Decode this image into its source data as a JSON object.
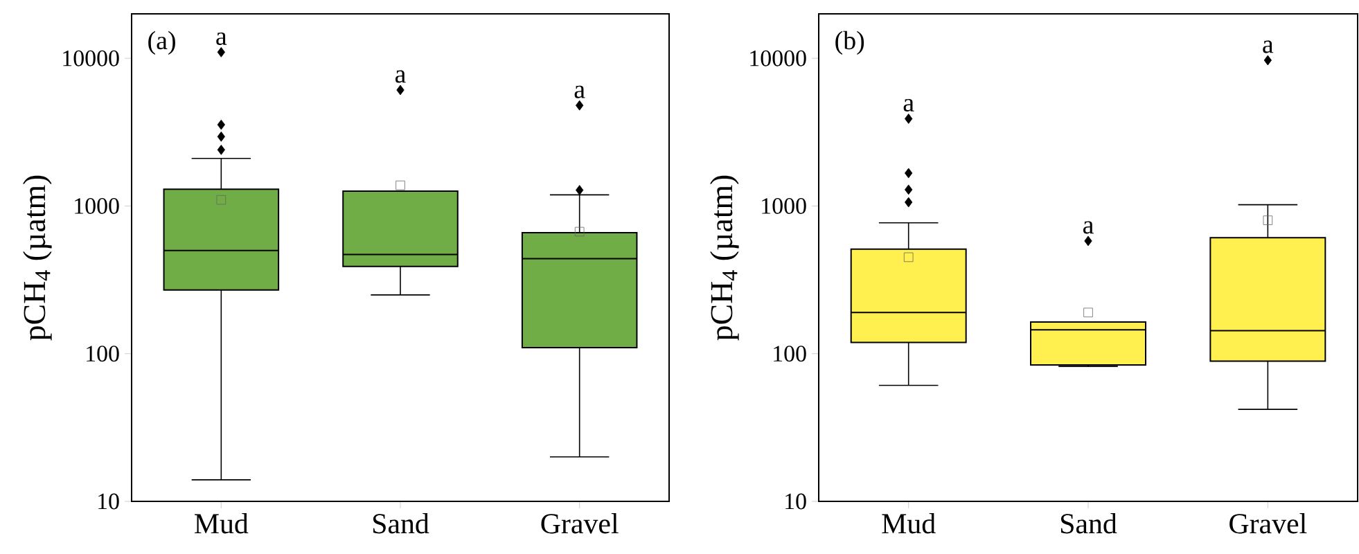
{
  "chart_data": [
    {
      "type": "box",
      "categories": [
        "Mud",
        "Sand",
        "Gravel"
      ],
      "ylabel": "pCH$_{4}$ (µatm)",
      "log": true,
      "ylim": [
        10,
        20000
      ],
      "yticks": [
        10,
        100,
        1000,
        10000
      ],
      "series": [
        {
          "color": "#70ad47",
          "boxes": [
            {
              "low": 14,
              "q1": 270,
              "median": 500,
              "q3": 1300,
              "high": 2100,
              "mean": 1100,
              "outliers": [
                2400,
                2950,
                3550,
                11000
              ]
            },
            {
              "low": 250,
              "q1": 390,
              "median": 470,
              "q3": 1260,
              "high": 1260,
              "mean": 1380,
              "outliers": [
                6100
              ]
            },
            {
              "low": 20,
              "q1": 110,
              "median": 440,
              "q3": 660,
              "high": 1190,
              "mean": 670,
              "outliers": [
                1280,
                4800
              ]
            }
          ]
        }
      ],
      "annotations": [
        "(a)",
        "a",
        "a",
        "a"
      ]
    },
    {
      "type": "box",
      "categories": [
        "Mud",
        "Sand",
        "Gravel"
      ],
      "ylabel": "pCH$_{4}$ (µatm)",
      "log": true,
      "ylim": [
        10,
        20000
      ],
      "yticks": [
        10,
        100,
        1000,
        10000
      ],
      "series": [
        {
          "color": "#fff04f",
          "boxes": [
            {
              "low": 61,
              "q1": 119,
              "median": 190,
              "q3": 510,
              "high": 770,
              "mean": 450,
              "outliers": [
                1060,
                1290,
                1670,
                3900
              ]
            },
            {
              "low": 82,
              "q1": 84,
              "median": 145,
              "q3": 164,
              "high": 164,
              "mean": 190,
              "outliers": [
                580
              ]
            },
            {
              "low": 42,
              "q1": 89,
              "median": 143,
              "q3": 610,
              "high": 1020,
              "mean": 800,
              "outliers": [
                9700
              ]
            }
          ]
        }
      ],
      "annotations": [
        "(b)",
        "a",
        "a",
        "a"
      ]
    }
  ]
}
